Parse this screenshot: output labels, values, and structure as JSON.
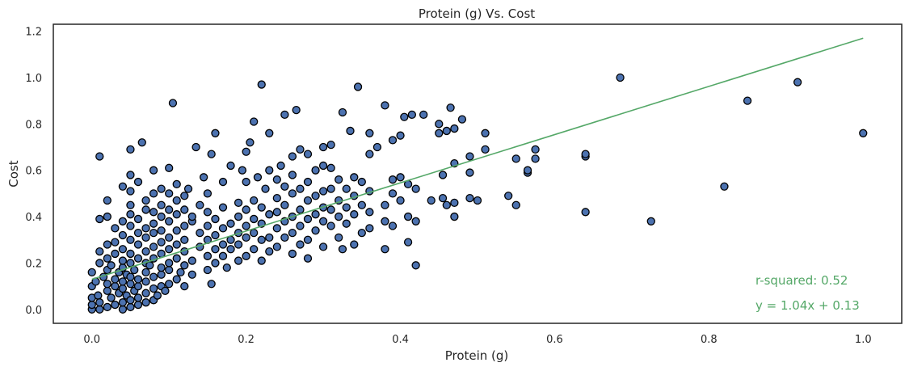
{
  "chart_data": {
    "type": "scatter",
    "title": "Protein (g) Vs. Cost",
    "xlabel": "Protein (g)",
    "ylabel": "Cost",
    "xlim": [
      -0.05,
      1.05
    ],
    "ylim": [
      -0.06,
      1.23
    ],
    "xticks": [
      0.0,
      0.2,
      0.4,
      0.6,
      0.8,
      1.0
    ],
    "xtick_labels": [
      "0.0",
      "0.2",
      "0.4",
      "0.6",
      "0.8",
      "1.0"
    ],
    "yticks": [
      0.0,
      0.2,
      0.4,
      0.6,
      0.8,
      1.0,
      1.2
    ],
    "ytick_labels": [
      "0.0",
      "0.2",
      "0.4",
      "0.6",
      "0.8",
      "1.0",
      "1.2"
    ],
    "grid": false,
    "colors": {
      "points": "#4c72b0",
      "point_edge": "#000000",
      "fit_line": "#55a868",
      "annotation": "#55a868"
    },
    "fit_line": {
      "slope": 1.04,
      "intercept": 0.13,
      "x_range": [
        0.0,
        1.0
      ]
    },
    "annotations": [
      "r-squared: 0.52",
      "y = 1.04x + 0.13"
    ],
    "points": [
      [
        0.0,
        0.0
      ],
      [
        0.0,
        0.02
      ],
      [
        0.0,
        0.05
      ],
      [
        0.0,
        0.1
      ],
      [
        0.0,
        0.16
      ],
      [
        0.005,
        0.12
      ],
      [
        0.008,
        0.06
      ],
      [
        0.01,
        0.0
      ],
      [
        0.01,
        0.03
      ],
      [
        0.01,
        0.2
      ],
      [
        0.01,
        0.25
      ],
      [
        0.01,
        0.39
      ],
      [
        0.01,
        0.66
      ],
      [
        0.015,
        0.14
      ],
      [
        0.02,
        0.01
      ],
      [
        0.02,
        0.08
      ],
      [
        0.02,
        0.11
      ],
      [
        0.02,
        0.17
      ],
      [
        0.02,
        0.22
      ],
      [
        0.02,
        0.28
      ],
      [
        0.02,
        0.4
      ],
      [
        0.02,
        0.47
      ],
      [
        0.025,
        0.05
      ],
      [
        0.025,
        0.19
      ],
      [
        0.03,
        0.02
      ],
      [
        0.03,
        0.1
      ],
      [
        0.03,
        0.13
      ],
      [
        0.03,
        0.24
      ],
      [
        0.03,
        0.29
      ],
      [
        0.03,
        0.35
      ],
      [
        0.035,
        0.07
      ],
      [
        0.035,
        0.16
      ],
      [
        0.04,
        0.0
      ],
      [
        0.04,
        0.03
      ],
      [
        0.04,
        0.09
      ],
      [
        0.04,
        0.12
      ],
      [
        0.04,
        0.18
      ],
      [
        0.04,
        0.21
      ],
      [
        0.04,
        0.26
      ],
      [
        0.04,
        0.32
      ],
      [
        0.04,
        0.38
      ],
      [
        0.04,
        0.53
      ],
      [
        0.045,
        0.06
      ],
      [
        0.045,
        0.15
      ],
      [
        0.05,
        0.01
      ],
      [
        0.05,
        0.04
      ],
      [
        0.05,
        0.11
      ],
      [
        0.05,
        0.14
      ],
      [
        0.05,
        0.2
      ],
      [
        0.05,
        0.24
      ],
      [
        0.05,
        0.3
      ],
      [
        0.05,
        0.36
      ],
      [
        0.05,
        0.41
      ],
      [
        0.05,
        0.45
      ],
      [
        0.05,
        0.51
      ],
      [
        0.05,
        0.58
      ],
      [
        0.05,
        0.69
      ],
      [
        0.055,
        0.08
      ],
      [
        0.055,
        0.17
      ],
      [
        0.06,
        0.02
      ],
      [
        0.06,
        0.05
      ],
      [
        0.06,
        0.1
      ],
      [
        0.06,
        0.13
      ],
      [
        0.06,
        0.22
      ],
      [
        0.06,
        0.28
      ],
      [
        0.06,
        0.33
      ],
      [
        0.06,
        0.39
      ],
      [
        0.06,
        0.55
      ],
      [
        0.065,
        0.72
      ],
      [
        0.07,
        0.03
      ],
      [
        0.07,
        0.07
      ],
      [
        0.07,
        0.12
      ],
      [
        0.07,
        0.16
      ],
      [
        0.07,
        0.2
      ],
      [
        0.07,
        0.25
      ],
      [
        0.07,
        0.31
      ],
      [
        0.07,
        0.35
      ],
      [
        0.07,
        0.43
      ],
      [
        0.07,
        0.47
      ],
      [
        0.075,
        0.19
      ],
      [
        0.08,
        0.04
      ],
      [
        0.08,
        0.09
      ],
      [
        0.08,
        0.14
      ],
      [
        0.08,
        0.22
      ],
      [
        0.08,
        0.27
      ],
      [
        0.08,
        0.33
      ],
      [
        0.08,
        0.37
      ],
      [
        0.08,
        0.42
      ],
      [
        0.08,
        0.5
      ],
      [
        0.08,
        0.6
      ],
      [
        0.085,
        0.06
      ],
      [
        0.09,
        0.1
      ],
      [
        0.09,
        0.15
      ],
      [
        0.09,
        0.18
      ],
      [
        0.09,
        0.24
      ],
      [
        0.09,
        0.29
      ],
      [
        0.09,
        0.34
      ],
      [
        0.09,
        0.4
      ],
      [
        0.09,
        0.45
      ],
      [
        0.09,
        0.52
      ],
      [
        0.095,
        0.08
      ],
      [
        0.1,
        0.11
      ],
      [
        0.1,
        0.17
      ],
      [
        0.1,
        0.2
      ],
      [
        0.1,
        0.26
      ],
      [
        0.1,
        0.31
      ],
      [
        0.1,
        0.38
      ],
      [
        0.1,
        0.43
      ],
      [
        0.1,
        0.5
      ],
      [
        0.1,
        0.61
      ],
      [
        0.105,
        0.89
      ],
      [
        0.11,
        0.13
      ],
      [
        0.11,
        0.22
      ],
      [
        0.11,
        0.28
      ],
      [
        0.11,
        0.34
      ],
      [
        0.11,
        0.41
      ],
      [
        0.11,
        0.47
      ],
      [
        0.11,
        0.54
      ],
      [
        0.115,
        0.16
      ],
      [
        0.12,
        0.1
      ],
      [
        0.12,
        0.19
      ],
      [
        0.12,
        0.25
      ],
      [
        0.12,
        0.3
      ],
      [
        0.12,
        0.36
      ],
      [
        0.12,
        0.43
      ],
      [
        0.12,
        0.49
      ],
      [
        0.125,
        0.52
      ],
      [
        0.13,
        0.15
      ],
      [
        0.13,
        0.21
      ],
      [
        0.13,
        0.38
      ],
      [
        0.13,
        0.4
      ],
      [
        0.135,
        0.7
      ],
      [
        0.14,
        0.27
      ],
      [
        0.14,
        0.33
      ],
      [
        0.14,
        0.45
      ],
      [
        0.145,
        0.57
      ],
      [
        0.15,
        0.17
      ],
      [
        0.15,
        0.23
      ],
      [
        0.15,
        0.3
      ],
      [
        0.15,
        0.36
      ],
      [
        0.15,
        0.42
      ],
      [
        0.15,
        0.5
      ],
      [
        0.155,
        0.11
      ],
      [
        0.155,
        0.67
      ],
      [
        0.16,
        0.2
      ],
      [
        0.16,
        0.26
      ],
      [
        0.16,
        0.32
      ],
      [
        0.16,
        0.39
      ],
      [
        0.16,
        0.76
      ],
      [
        0.17,
        0.23
      ],
      [
        0.17,
        0.28
      ],
      [
        0.17,
        0.35
      ],
      [
        0.17,
        0.44
      ],
      [
        0.17,
        0.55
      ],
      [
        0.175,
        0.18
      ],
      [
        0.18,
        0.26
      ],
      [
        0.18,
        0.3
      ],
      [
        0.18,
        0.37
      ],
      [
        0.18,
        0.62
      ],
      [
        0.19,
        0.21
      ],
      [
        0.19,
        0.28
      ],
      [
        0.19,
        0.33
      ],
      [
        0.19,
        0.4
      ],
      [
        0.19,
        0.46
      ],
      [
        0.195,
        0.6
      ],
      [
        0.2,
        0.23
      ],
      [
        0.2,
        0.31
      ],
      [
        0.2,
        0.36
      ],
      [
        0.2,
        0.43
      ],
      [
        0.2,
        0.55
      ],
      [
        0.2,
        0.68
      ],
      [
        0.205,
        0.72
      ],
      [
        0.21,
        0.26
      ],
      [
        0.21,
        0.33
      ],
      [
        0.21,
        0.39
      ],
      [
        0.21,
        0.47
      ],
      [
        0.21,
        0.81
      ],
      [
        0.215,
        0.57
      ],
      [
        0.22,
        0.21
      ],
      [
        0.22,
        0.3
      ],
      [
        0.22,
        0.37
      ],
      [
        0.22,
        0.44
      ],
      [
        0.22,
        0.97
      ],
      [
        0.225,
        0.52
      ],
      [
        0.23,
        0.25
      ],
      [
        0.23,
        0.31
      ],
      [
        0.23,
        0.41
      ],
      [
        0.23,
        0.6
      ],
      [
        0.23,
        0.76
      ],
      [
        0.24,
        0.27
      ],
      [
        0.24,
        0.35
      ],
      [
        0.24,
        0.42
      ],
      [
        0.24,
        0.48
      ],
      [
        0.24,
        0.56
      ],
      [
        0.245,
        0.62
      ],
      [
        0.25,
        0.31
      ],
      [
        0.25,
        0.38
      ],
      [
        0.25,
        0.45
      ],
      [
        0.25,
        0.53
      ],
      [
        0.25,
        0.84
      ],
      [
        0.26,
        0.24
      ],
      [
        0.26,
        0.33
      ],
      [
        0.26,
        0.4
      ],
      [
        0.26,
        0.5
      ],
      [
        0.26,
        0.58
      ],
      [
        0.26,
        0.66
      ],
      [
        0.265,
        0.86
      ],
      [
        0.27,
        0.28
      ],
      [
        0.27,
        0.36
      ],
      [
        0.27,
        0.43
      ],
      [
        0.27,
        0.52
      ],
      [
        0.27,
        0.69
      ],
      [
        0.28,
        0.22
      ],
      [
        0.28,
        0.3
      ],
      [
        0.28,
        0.39
      ],
      [
        0.28,
        0.47
      ],
      [
        0.28,
        0.55
      ],
      [
        0.28,
        0.67
      ],
      [
        0.29,
        0.34
      ],
      [
        0.29,
        0.41
      ],
      [
        0.29,
        0.49
      ],
      [
        0.29,
        0.6
      ],
      [
        0.3,
        0.27
      ],
      [
        0.3,
        0.38
      ],
      [
        0.3,
        0.44
      ],
      [
        0.3,
        0.51
      ],
      [
        0.3,
        0.62
      ],
      [
        0.3,
        0.7
      ],
      [
        0.31,
        0.36
      ],
      [
        0.31,
        0.43
      ],
      [
        0.31,
        0.52
      ],
      [
        0.31,
        0.61
      ],
      [
        0.31,
        0.71
      ],
      [
        0.32,
        0.31
      ],
      [
        0.32,
        0.4
      ],
      [
        0.32,
        0.47
      ],
      [
        0.32,
        0.56
      ],
      [
        0.325,
        0.26
      ],
      [
        0.325,
        0.85
      ],
      [
        0.33,
        0.37
      ],
      [
        0.33,
        0.44
      ],
      [
        0.33,
        0.52
      ],
      [
        0.335,
        0.77
      ],
      [
        0.34,
        0.28
      ],
      [
        0.34,
        0.41
      ],
      [
        0.34,
        0.49
      ],
      [
        0.34,
        0.57
      ],
      [
        0.345,
        0.96
      ],
      [
        0.35,
        0.33
      ],
      [
        0.35,
        0.45
      ],
      [
        0.35,
        0.55
      ],
      [
        0.36,
        0.35
      ],
      [
        0.36,
        0.42
      ],
      [
        0.36,
        0.51
      ],
      [
        0.36,
        0.67
      ],
      [
        0.36,
        0.76
      ],
      [
        0.37,
        0.7
      ],
      [
        0.38,
        0.26
      ],
      [
        0.38,
        0.38
      ],
      [
        0.38,
        0.45
      ],
      [
        0.38,
        0.88
      ],
      [
        0.39,
        0.36
      ],
      [
        0.39,
        0.5
      ],
      [
        0.39,
        0.56
      ],
      [
        0.39,
        0.73
      ],
      [
        0.4,
        0.47
      ],
      [
        0.4,
        0.57
      ],
      [
        0.4,
        0.75
      ],
      [
        0.405,
        0.83
      ],
      [
        0.41,
        0.29
      ],
      [
        0.41,
        0.4
      ],
      [
        0.41,
        0.54
      ],
      [
        0.415,
        0.84
      ],
      [
        0.42,
        0.19
      ],
      [
        0.42,
        0.38
      ],
      [
        0.42,
        0.52
      ],
      [
        0.43,
        0.84
      ],
      [
        0.44,
        0.47
      ],
      [
        0.45,
        0.76
      ],
      [
        0.45,
        0.8
      ],
      [
        0.455,
        0.48
      ],
      [
        0.455,
        0.58
      ],
      [
        0.46,
        0.45
      ],
      [
        0.46,
        0.77
      ],
      [
        0.465,
        0.87
      ],
      [
        0.47,
        0.4
      ],
      [
        0.47,
        0.46
      ],
      [
        0.47,
        0.63
      ],
      [
        0.47,
        0.78
      ],
      [
        0.48,
        0.82
      ],
      [
        0.49,
        0.48
      ],
      [
        0.49,
        0.59
      ],
      [
        0.49,
        0.66
      ],
      [
        0.5,
        0.47
      ],
      [
        0.51,
        0.69
      ],
      [
        0.51,
        0.76
      ],
      [
        0.54,
        0.49
      ],
      [
        0.55,
        0.45
      ],
      [
        0.55,
        0.65
      ],
      [
        0.565,
        0.59
      ],
      [
        0.565,
        0.6
      ],
      [
        0.575,
        0.65
      ],
      [
        0.575,
        0.69
      ],
      [
        0.64,
        0.42
      ],
      [
        0.64,
        0.66
      ],
      [
        0.64,
        0.67
      ],
      [
        0.685,
        1.0
      ],
      [
        0.725,
        0.38
      ],
      [
        0.82,
        0.53
      ],
      [
        0.85,
        0.9
      ],
      [
        0.915,
        0.98
      ],
      [
        1.0,
        0.76
      ]
    ]
  }
}
